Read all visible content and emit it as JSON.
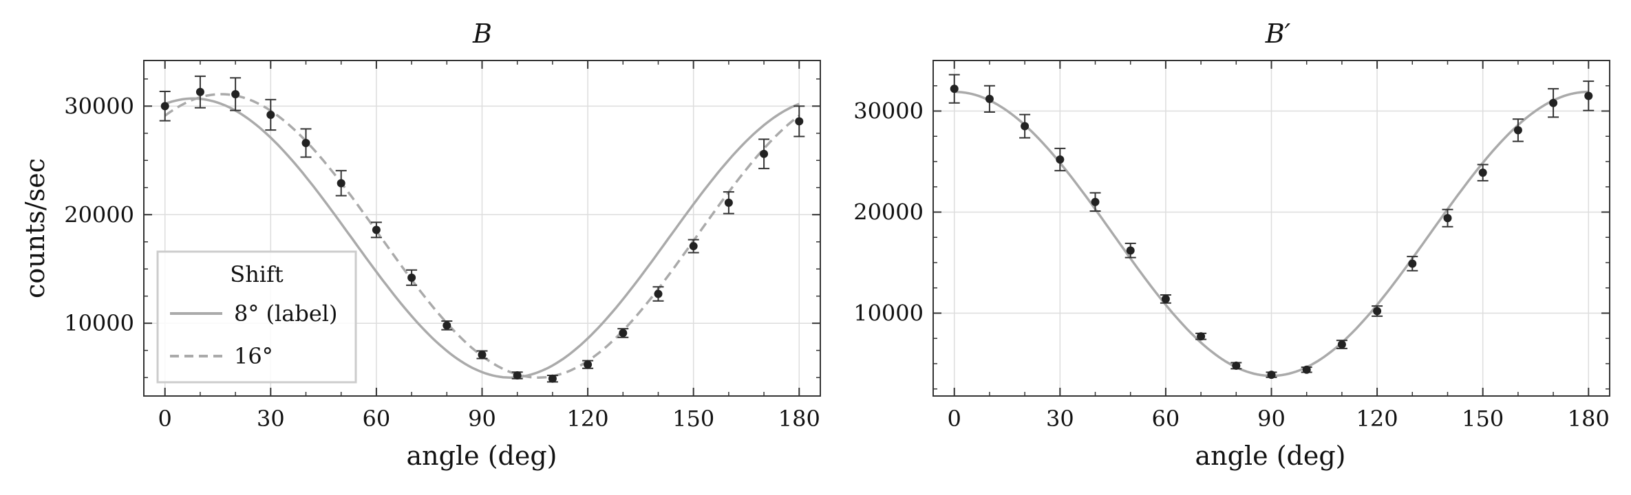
{
  "chart_data": [
    {
      "type": "scatter",
      "title": "B",
      "title_prime": "",
      "xlabel": "angle (deg)",
      "ylabel": "counts/sec",
      "xlim": [
        -6,
        186
      ],
      "ylim": [
        3300,
        34200
      ],
      "xticks": [
        0,
        30,
        60,
        90,
        120,
        150,
        180
      ],
      "yticks": [
        10000,
        20000,
        30000
      ],
      "grid": true,
      "legend": {
        "title": "Shift",
        "placement": "lower-left"
      },
      "points": {
        "x": [
          0,
          10,
          20,
          30,
          40,
          50,
          60,
          70,
          80,
          90,
          100,
          110,
          120,
          130,
          140,
          150,
          160,
          170,
          180
        ],
        "y": [
          30000,
          31300,
          31100,
          29200,
          26600,
          22900,
          18600,
          14200,
          9800,
          7100,
          5200,
          4900,
          6200,
          9100,
          12700,
          17100,
          21100,
          25600,
          28600
        ],
        "err": [
          1350,
          1450,
          1500,
          1400,
          1300,
          1150,
          700,
          700,
          400,
          350,
          300,
          300,
          350,
          400,
          650,
          600,
          1000,
          1350,
          1400
        ]
      },
      "series": [
        {
          "name": "8° (label)",
          "style": "solid",
          "color": "#aaaaaa",
          "shift_deg": 8,
          "amplitude": 12850,
          "offset": 17850
        },
        {
          "name": "16°",
          "style": "dashed",
          "color": "#aaaaaa",
          "shift_deg": 16,
          "amplitude": 13050,
          "offset": 18050
        }
      ]
    },
    {
      "type": "scatter",
      "title": "B",
      "title_prime": "′",
      "xlabel": "angle (deg)",
      "ylabel": "",
      "xlim": [
        -6,
        186
      ],
      "ylim": [
        1800,
        35000
      ],
      "xticks": [
        0,
        30,
        60,
        90,
        120,
        150,
        180
      ],
      "yticks": [
        10000,
        20000,
        30000
      ],
      "grid": true,
      "points": {
        "x": [
          0,
          10,
          20,
          30,
          40,
          50,
          60,
          70,
          80,
          90,
          100,
          110,
          120,
          130,
          140,
          150,
          160,
          170,
          180
        ],
        "y": [
          32200,
          31200,
          28500,
          25200,
          21000,
          16200,
          11400,
          7700,
          4800,
          3900,
          4400,
          6900,
          10200,
          14900,
          19400,
          23900,
          28100,
          30800,
          31500
        ],
        "err": [
          1400,
          1300,
          1150,
          1100,
          900,
          700,
          400,
          300,
          300,
          250,
          250,
          400,
          500,
          700,
          850,
          800,
          1100,
          1400,
          1450
        ]
      },
      "series": [
        {
          "name": "",
          "style": "solid",
          "color": "#aaaaaa",
          "shift_deg": 0,
          "amplitude": 14050,
          "offset": 17850
        }
      ]
    }
  ]
}
